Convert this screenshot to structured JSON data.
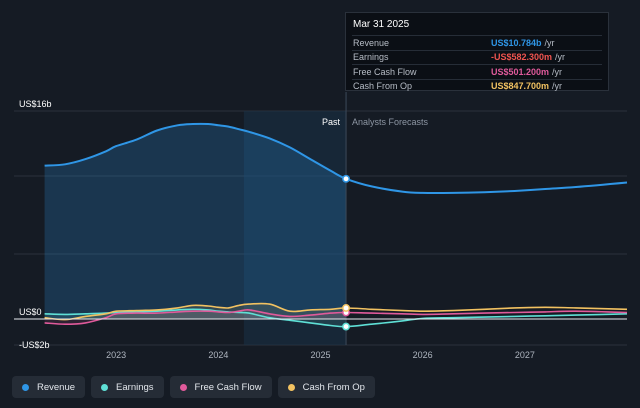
{
  "chart_data": {
    "type": "area",
    "x_dates": [
      "2022.3",
      "2022.5",
      "2022.7",
      "2022.9",
      "2023.0",
      "2023.2",
      "2023.4",
      "2023.6",
      "2023.75",
      "2023.9",
      "2024.0",
      "2024.1",
      "2024.2",
      "2024.3",
      "2024.5",
      "2024.7",
      "2024.9",
      "2025.1",
      "2025.25",
      "2025.5",
      "2025.8",
      "2026.0",
      "2026.3",
      "2026.6",
      "2026.9",
      "2027.2",
      "2027.5",
      "2028.0"
    ],
    "forecast_start": 2025.25,
    "highlight_start": 2024.25,
    "xlim": [
      2022.0,
      2028.0
    ],
    "ylim": [
      -2.2,
      16.2
    ],
    "y_axis_labels": [
      {
        "label": "US$16b",
        "value": 16
      },
      {
        "label": "US$0",
        "value": 0
      },
      {
        "label": "-US$2b",
        "value": -2
      }
    ],
    "x_ticks": [
      {
        "label": "2023",
        "value": 2023
      },
      {
        "label": "2024",
        "value": 2024
      },
      {
        "label": "2025",
        "value": 2025
      },
      {
        "label": "2026",
        "value": 2026
      },
      {
        "label": "2027",
        "value": 2027
      }
    ],
    "region_labels": {
      "past": "Past",
      "forecast": "Analysts Forecasts"
    },
    "series": [
      {
        "name": "Revenue",
        "color": "#2f96e6",
        "values": [
          11.8,
          11.9,
          12.3,
          12.9,
          13.3,
          13.8,
          14.5,
          14.9,
          15.0,
          15.0,
          14.9,
          14.8,
          14.6,
          14.4,
          13.9,
          13.2,
          12.3,
          11.4,
          10.784,
          10.2,
          9.8,
          9.7,
          9.7,
          9.75,
          9.85,
          10.0,
          10.15,
          10.5
        ]
      },
      {
        "name": "Earnings",
        "color": "#5fe0d6",
        "values": [
          0.4,
          0.35,
          0.4,
          0.45,
          0.5,
          0.55,
          0.6,
          0.7,
          0.75,
          0.7,
          0.6,
          0.55,
          0.5,
          0.45,
          0.1,
          -0.1,
          -0.3,
          -0.5,
          -0.5823,
          -0.4,
          -0.15,
          0.05,
          0.1,
          0.15,
          0.2,
          0.25,
          0.3,
          0.4
        ]
      },
      {
        "name": "Free Cash Flow",
        "color": "#e05a9b",
        "values": [
          -0.3,
          -0.4,
          -0.3,
          0.1,
          0.4,
          0.45,
          0.45,
          0.55,
          0.6,
          0.6,
          0.55,
          0.5,
          0.6,
          0.7,
          0.4,
          0.2,
          0.3,
          0.45,
          0.5012,
          0.45,
          0.4,
          0.35,
          0.4,
          0.45,
          0.5,
          0.55,
          0.6,
          0.5
        ]
      },
      {
        "name": "Cash From Op",
        "color": "#f2c261",
        "values": [
          0.1,
          -0.05,
          0.2,
          0.4,
          0.6,
          0.65,
          0.7,
          0.85,
          1.05,
          1.0,
          0.9,
          0.85,
          1.05,
          1.15,
          1.15,
          0.6,
          0.7,
          0.75,
          0.8477,
          0.75,
          0.65,
          0.6,
          0.65,
          0.75,
          0.85,
          0.9,
          0.85,
          0.75
        ]
      }
    ]
  },
  "tooltip": {
    "date": "Mar 31 2025",
    "rows": [
      {
        "name": "Revenue",
        "value": "US$10.784b",
        "unit": "/yr",
        "color": "#2f96e6"
      },
      {
        "name": "Earnings",
        "value": "-US$582.300m",
        "unit": "/yr",
        "color": "#f0544f"
      },
      {
        "name": "Free Cash Flow",
        "value": "US$501.200m",
        "unit": "/yr",
        "color": "#e05a9b"
      },
      {
        "name": "Cash From Op",
        "value": "US$847.700m",
        "unit": "/yr",
        "color": "#f2c261"
      }
    ]
  },
  "legend": [
    {
      "label": "Revenue",
      "color": "#2f96e6"
    },
    {
      "label": "Earnings",
      "color": "#5fe0d6"
    },
    {
      "label": "Free Cash Flow",
      "color": "#e05a9b"
    },
    {
      "label": "Cash From Op",
      "color": "#f2c261"
    }
  ]
}
